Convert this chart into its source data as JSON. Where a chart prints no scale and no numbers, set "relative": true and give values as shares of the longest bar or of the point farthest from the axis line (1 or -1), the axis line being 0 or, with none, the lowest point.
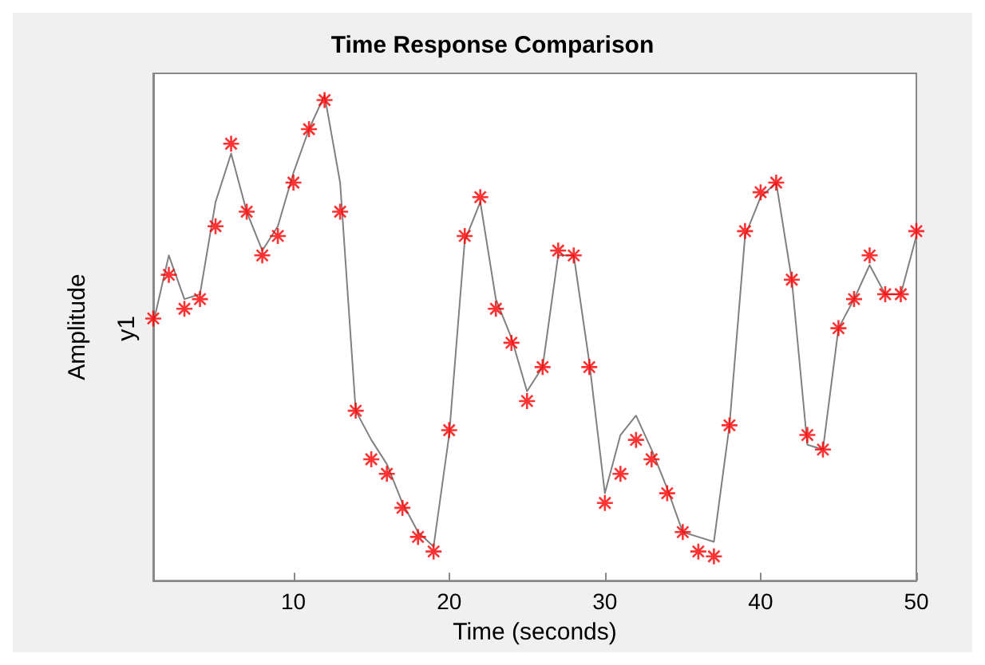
{
  "chart_data": {
    "type": "line",
    "title": "Time Response Comparison",
    "xlabel": "Time (seconds)",
    "ylabel": "Amplitude",
    "annotations": [
      "y1"
    ],
    "relative": true,
    "x": [
      1,
      2,
      3,
      4,
      5,
      6,
      7,
      8,
      9,
      10,
      11,
      12,
      13,
      14,
      15,
      16,
      17,
      18,
      19,
      20,
      21,
      22,
      23,
      24,
      25,
      26,
      27,
      28,
      29,
      30,
      31,
      32,
      33,
      34,
      35,
      36,
      37,
      38,
      39,
      40,
      41,
      42,
      43,
      44,
      45,
      46,
      47,
      48,
      49,
      50
    ],
    "xlim": [
      1,
      50
    ],
    "xticks": [
      10,
      20,
      30,
      40,
      50
    ],
    "tick_labels": "x",
    "grid": false,
    "series": [
      {
        "color": "#808080",
        "marker": "none",
        "line_style": "solid",
        "values": [
          0.53,
          0.67,
          0.58,
          0.59,
          0.78,
          0.88,
          0.76,
          0.68,
          0.73,
          0.84,
          0.93,
          1,
          0.82,
          0.35,
          0.29,
          0.24,
          0.16,
          0.1,
          0.07,
          0.3,
          0.7,
          0.78,
          0.58,
          0.5,
          0.39,
          0.44,
          0.67,
          0.67,
          0.45,
          0.18,
          0.3,
          0.34,
          0.27,
          0.19,
          0.1,
          0.09,
          0.08,
          0.32,
          0.71,
          0.79,
          0.82,
          0.62,
          0.28,
          0.27,
          0.52,
          0.58,
          0.65,
          0.59,
          0.59,
          0.71
        ]
      },
      {
        "type": "scatter",
        "color": "#ff0000",
        "marker": "cross",
        "values": [
          0.54,
          0.63,
          0.56,
          0.58,
          0.73,
          0.9,
          0.76,
          0.67,
          0.71,
          0.82,
          0.93,
          0.99,
          0.76,
          0.35,
          0.25,
          0.22,
          0.15,
          0.09,
          0.06,
          0.31,
          0.71,
          0.79,
          0.56,
          0.49,
          0.37,
          0.44,
          0.68,
          0.67,
          0.44,
          0.16,
          0.22,
          0.29,
          0.25,
          0.18,
          0.1,
          0.06,
          0.05,
          0.32,
          0.72,
          0.8,
          0.82,
          0.62,
          0.3,
          0.27,
          0.52,
          0.58,
          0.67,
          0.59,
          0.59,
          0.72
        ]
      }
    ]
  }
}
